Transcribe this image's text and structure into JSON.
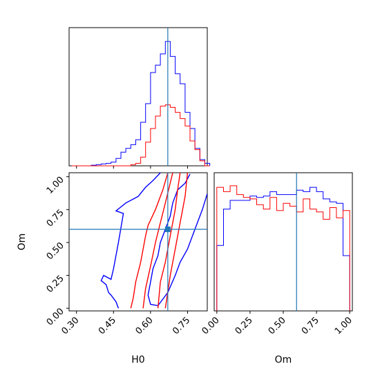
{
  "chart_data": [
    {
      "type": "histogram",
      "panel": "H0 marginal",
      "xlim": [
        0.27,
        0.83
      ],
      "x_bins": [
        0.28,
        0.3,
        0.32,
        0.34,
        0.36,
        0.38,
        0.4,
        0.42,
        0.44,
        0.46,
        0.48,
        0.5,
        0.52,
        0.54,
        0.56,
        0.58,
        0.6,
        0.62,
        0.64,
        0.66,
        0.68,
        0.7,
        0.72,
        0.74,
        0.76,
        0.78,
        0.8,
        0.82,
        0.84
      ],
      "series": [
        {
          "color": "#0000ff",
          "counts": [
            0,
            0,
            0,
            0,
            0.5,
            1,
            1.5,
            2,
            3,
            6,
            11,
            14,
            17,
            21,
            35,
            50,
            75,
            81,
            90,
            100,
            88,
            74,
            66,
            43,
            30,
            14,
            5,
            2
          ]
        },
        {
          "color": "#ff0000",
          "counts": [
            0,
            0,
            0,
            0,
            0,
            0,
            0,
            0,
            0,
            0,
            0,
            0,
            1,
            2,
            7,
            19,
            30,
            40,
            48,
            49,
            47,
            43,
            38,
            32,
            20,
            13,
            4,
            0
          ]
        }
      ],
      "truth_line": 0.67,
      "line_color": "#1f77b4"
    },
    {
      "type": "contour",
      "panel": "H0 vs Om",
      "xlabel": "H0",
      "ylabel": "Om",
      "xlim": [
        0.27,
        0.83
      ],
      "ylim": [
        -0.02,
        1.03
      ],
      "xticks": [
        "0.30",
        "0.45",
        "0.60",
        "0.75"
      ],
      "xtick_values": [
        0.3,
        0.45,
        0.6,
        0.75
      ],
      "yticks": [
        "0.00",
        "0.25",
        "0.50",
        "0.75",
        "1.00"
      ],
      "ytick_values": [
        0,
        0.25,
        0.5,
        0.75,
        1.0
      ],
      "truth_point": [
        0.67,
        0.6
      ],
      "contours": [
        {
          "color": "#0000ff",
          "points": [
            [
              0.47,
              0.0
            ],
            [
              0.46,
              0.05
            ],
            [
              0.44,
              0.1
            ],
            [
              0.43,
              0.12
            ],
            [
              0.42,
              0.18
            ],
            [
              0.4,
              0.21
            ],
            [
              0.41,
              0.25
            ],
            [
              0.44,
              0.22
            ],
            [
              0.45,
              0.3
            ],
            [
              0.47,
              0.5
            ],
            [
              0.49,
              0.72
            ],
            [
              0.46,
              0.74
            ],
            [
              0.5,
              0.8
            ],
            [
              0.55,
              0.85
            ],
            [
              0.58,
              0.92
            ],
            [
              0.61,
              0.97
            ],
            [
              0.64,
              1.03
            ]
          ]
        },
        {
          "color": "#0000ff",
          "points": [
            [
              0.76,
              1.02
            ],
            [
              0.74,
              0.95
            ],
            [
              0.71,
              0.9
            ],
            [
              0.69,
              0.8
            ],
            [
              0.68,
              0.7
            ],
            [
              0.66,
              0.6
            ],
            [
              0.64,
              0.5
            ],
            [
              0.63,
              0.4
            ],
            [
              0.61,
              0.3
            ],
            [
              0.6,
              0.2
            ],
            [
              0.59,
              0.1
            ],
            [
              0.6,
              0.03
            ],
            [
              0.63,
              0.02
            ],
            [
              0.67,
              0.12
            ],
            [
              0.7,
              0.25
            ],
            [
              0.72,
              0.35
            ],
            [
              0.75,
              0.45
            ],
            [
              0.78,
              0.6
            ],
            [
              0.81,
              0.75
            ],
            [
              0.83,
              0.87
            ]
          ]
        },
        {
          "color": "#ff0000",
          "points": [
            [
              0.52,
              0.0
            ],
            [
              0.53,
              0.08
            ],
            [
              0.54,
              0.2
            ],
            [
              0.56,
              0.35
            ],
            [
              0.58,
              0.55
            ],
            [
              0.59,
              0.63
            ],
            [
              0.62,
              0.75
            ],
            [
              0.65,
              0.9
            ],
            [
              0.67,
              1.03
            ]
          ]
        },
        {
          "color": "#ff0000",
          "points": [
            [
              0.72,
              1.03
            ],
            [
              0.71,
              0.9
            ],
            [
              0.7,
              0.75
            ],
            [
              0.68,
              0.55
            ],
            [
              0.66,
              0.35
            ],
            [
              0.64,
              0.2
            ],
            [
              0.63,
              0.0
            ]
          ]
        },
        {
          "color": "#ff0000",
          "points": [
            [
              0.57,
              0.0
            ],
            [
              0.58,
              0.15
            ],
            [
              0.6,
              0.32
            ],
            [
              0.62,
              0.5
            ],
            [
              0.64,
              0.65
            ],
            [
              0.66,
              0.8
            ],
            [
              0.69,
              1.03
            ]
          ]
        },
        {
          "color": "#ff0000",
          "points": [
            [
              0.75,
              1.03
            ],
            [
              0.74,
              0.85
            ],
            [
              0.72,
              0.65
            ],
            [
              0.7,
              0.45
            ],
            [
              0.68,
              0.25
            ],
            [
              0.66,
              0.0
            ]
          ]
        }
      ]
    },
    {
      "type": "histogram",
      "panel": "Om marginal",
      "xlabel": "Om",
      "xlim": [
        -0.02,
        1.02
      ],
      "xticks": [
        "0.00",
        "0.25",
        "0.50",
        "0.75",
        "1.00"
      ],
      "xtick_values": [
        0,
        0.25,
        0.5,
        0.75,
        1.0
      ],
      "x_bins": [
        0.0,
        0.05,
        0.1,
        0.15,
        0.2,
        0.25,
        0.3,
        0.35,
        0.4,
        0.45,
        0.5,
        0.55,
        0.6,
        0.65,
        0.7,
        0.75,
        0.8,
        0.85,
        0.9,
        0.95,
        1.0
      ],
      "series": [
        {
          "color": "#0000ff",
          "counts": [
            0.45,
            0.7,
            0.76,
            0.76,
            0.76,
            0.79,
            0.78,
            0.79,
            0.82,
            0.8,
            0.8,
            0.8,
            0.83,
            0.82,
            0.85,
            0.82,
            0.77,
            0.75,
            0.74,
            0.38
          ]
        },
        {
          "color": "#ff0000",
          "counts": [
            0.85,
            0.82,
            0.86,
            0.8,
            0.78,
            0.77,
            0.73,
            0.7,
            0.78,
            0.69,
            0.74,
            0.72,
            0.68,
            0.77,
            0.7,
            0.68,
            0.63,
            0.71,
            0.64,
            0.69
          ]
        }
      ],
      "ylim": [
        0,
        0.95
      ],
      "truth_line": 0.6,
      "line_color": "#1f77b4"
    }
  ]
}
